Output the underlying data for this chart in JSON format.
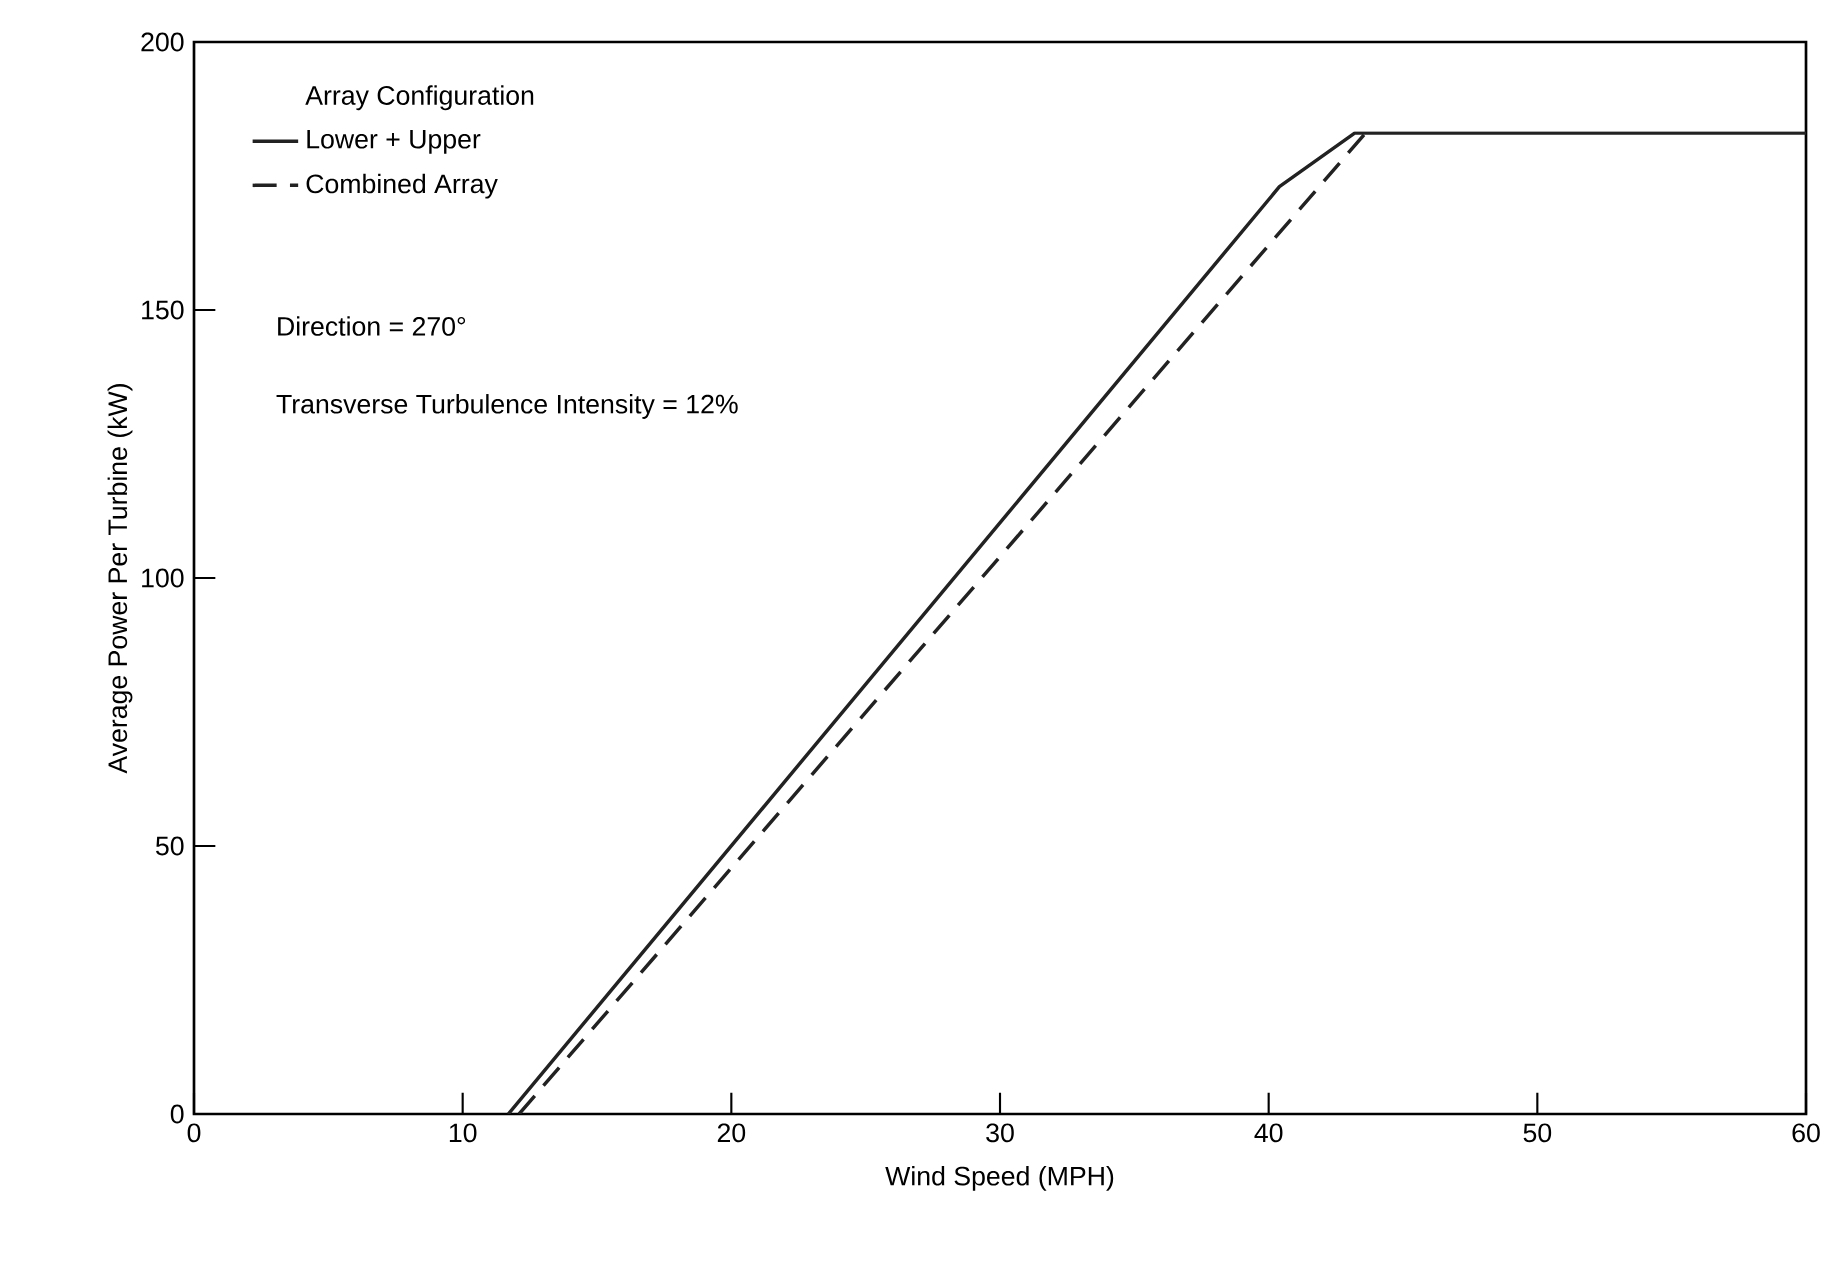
{
  "chart_data": {
    "type": "line",
    "xlabel": "Wind Speed (MPH)",
    "ylabel": "Average Power Per Turbine (kW)",
    "legend_title": "Array Configuration",
    "series": [
      {
        "name": "Lower + Upper",
        "color": "#222222",
        "line_style": "solid",
        "x": [
          11.7,
          40.4,
          43.2,
          60
        ],
        "values": [
          0,
          173,
          183,
          183
        ]
      },
      {
        "name": "Combined Array",
        "color": "#222222",
        "line_style": "dashed",
        "x": [
          12.1,
          43.6
        ],
        "values": [
          0,
          183
        ]
      }
    ],
    "xlim": [
      0,
      60
    ],
    "ylim": [
      0,
      200
    ],
    "xticks": [
      0,
      10,
      20,
      30,
      40,
      50,
      60
    ],
    "yticks": [
      0,
      50,
      100,
      150,
      200
    ],
    "legend": "top left",
    "marker": "none",
    "grid": false,
    "annotations": [
      "Direction = 270°",
      "Transverse Turbulence Intensity = 12%"
    ]
  }
}
